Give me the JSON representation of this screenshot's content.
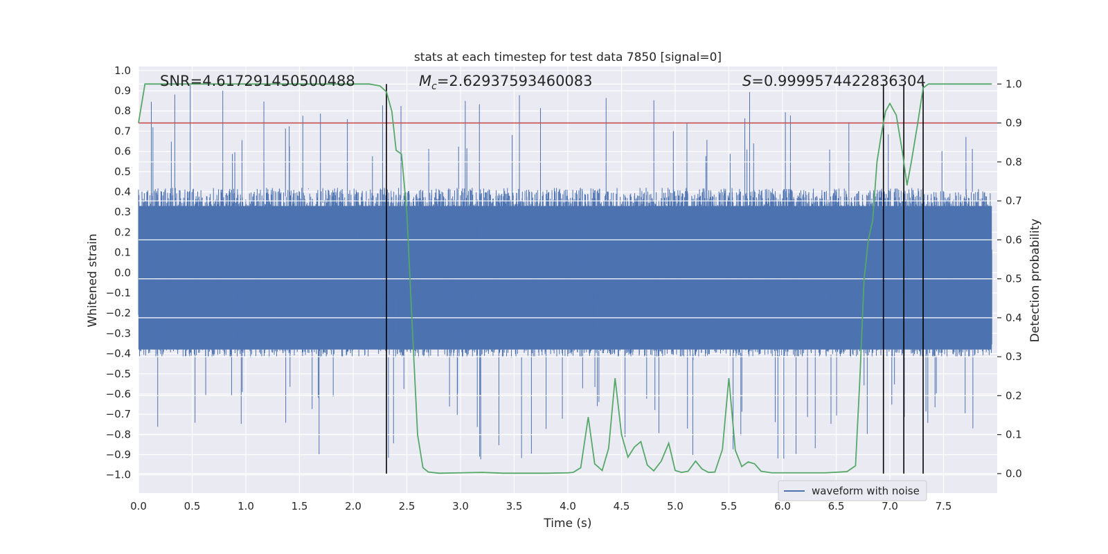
{
  "chart_data": {
    "type": "line",
    "title": "stats at each timestep for test data 7850 [signal=0]",
    "xlabel": "Time (s)",
    "ylabel_left": "Whitened strain",
    "ylabel_right": "Detection probability",
    "xlim": [
      0.0,
      8.0
    ],
    "ylim_left": [
      -1.09,
      1.02
    ],
    "ylim_right": [
      -0.05,
      1.045
    ],
    "x_ticks": [
      "0.0",
      "0.5",
      "1.0",
      "1.5",
      "2.0",
      "2.5",
      "3.0",
      "3.5",
      "4.0",
      "4.5",
      "5.0",
      "5.5",
      "6.0",
      "6.5",
      "7.0",
      "7.5"
    ],
    "x_tick_values": [
      0.0,
      0.5,
      1.0,
      1.5,
      2.0,
      2.5,
      3.0,
      3.5,
      4.0,
      4.5,
      5.0,
      5.5,
      6.0,
      6.5,
      7.0,
      7.5
    ],
    "y_ticks_left": [
      "1.0",
      "0.9",
      "0.8",
      "0.7",
      "0.6",
      "0.5",
      "0.4",
      "0.3",
      "0.2",
      "0.1",
      "0.0",
      "−0.1",
      "−0.2",
      "−0.3",
      "−0.4",
      "−0.5",
      "−0.6",
      "−0.7",
      "−0.8",
      "−0.9",
      "−1.0"
    ],
    "y_tick_values_left": [
      1.0,
      0.9,
      0.8,
      0.7,
      0.6,
      0.5,
      0.4,
      0.3,
      0.2,
      0.1,
      0.0,
      -0.1,
      -0.2,
      -0.3,
      -0.4,
      -0.5,
      -0.6,
      -0.7,
      -0.8,
      -0.9,
      -1.0
    ],
    "y_ticks_right": [
      "1.0",
      "0.9",
      "0.8",
      "0.7",
      "0.6",
      "0.5",
      "0.4",
      "0.3",
      "0.2",
      "0.1",
      "0.0"
    ],
    "y_tick_values_right": [
      1.0,
      0.9,
      0.8,
      0.7,
      0.6,
      0.5,
      0.4,
      0.3,
      0.2,
      0.1,
      0.0
    ],
    "annotations": {
      "snr": "SNR=4.617291450500488",
      "mc_symbol": "M",
      "mc_sub": "c",
      "mc_value": "=2.62937593460083",
      "s_symbol": "S",
      "s_value": "=0.9999574422836304"
    },
    "legend": {
      "label": "waveform with noise",
      "position": "lower-right"
    },
    "threshold": {
      "value": 0.9,
      "axis": "right",
      "color": "#c44e52"
    },
    "vertical_markers": [
      2.31,
      6.94,
      7.13,
      7.31
    ],
    "vertical_marker_range_right": [
      0.0,
      1.0
    ],
    "waveform": {
      "color": "#4c72b0",
      "samples": 3200,
      "seed": 7850,
      "typical_range": [
        -0.42,
        0.45
      ],
      "max_abs": 1.0
    },
    "probability_series": {
      "color": "#55a868",
      "x": [
        0.0,
        0.06,
        0.2,
        0.6,
        1.0,
        1.5,
        2.0,
        2.15,
        2.25,
        2.31,
        2.36,
        2.4,
        2.45,
        2.5,
        2.55,
        2.6,
        2.65,
        2.7,
        2.8,
        3.0,
        3.2,
        3.4,
        3.6,
        3.8,
        4.0,
        4.05,
        4.12,
        4.19,
        4.25,
        4.32,
        4.38,
        4.44,
        4.5,
        4.56,
        4.62,
        4.68,
        4.74,
        4.8,
        4.87,
        4.94,
        5.0,
        5.06,
        5.12,
        5.19,
        5.25,
        5.31,
        5.37,
        5.44,
        5.5,
        5.56,
        5.62,
        5.68,
        5.74,
        5.8,
        5.9,
        6.0,
        6.2,
        6.4,
        6.6,
        6.68,
        6.72,
        6.76,
        6.8,
        6.84,
        6.88,
        6.92,
        6.96,
        7.0,
        7.06,
        7.12,
        7.16,
        7.2,
        7.26,
        7.31,
        7.36,
        7.42,
        7.5,
        7.6,
        7.75,
        7.95
      ],
      "values": [
        0.9,
        1.0,
        1.0,
        1.0,
        1.0,
        1.0,
        1.0,
        1.0,
        0.995,
        0.98,
        0.93,
        0.83,
        0.82,
        0.67,
        0.38,
        0.1,
        0.015,
        0.004,
        0.001,
        0.002,
        0.003,
        0.001,
        0.001,
        0.001,
        0.002,
        0.003,
        0.015,
        0.145,
        0.025,
        0.008,
        0.065,
        0.245,
        0.1,
        0.042,
        0.068,
        0.082,
        0.022,
        0.007,
        0.032,
        0.078,
        0.008,
        0.003,
        0.006,
        0.032,
        0.012,
        0.003,
        0.004,
        0.062,
        0.245,
        0.06,
        0.018,
        0.03,
        0.025,
        0.006,
        0.002,
        0.002,
        0.002,
        0.002,
        0.005,
        0.02,
        0.24,
        0.5,
        0.6,
        0.65,
        0.8,
        0.87,
        0.93,
        0.95,
        0.92,
        0.82,
        0.74,
        0.8,
        0.9,
        0.99,
        1.0,
        1.0,
        1.0,
        1.0,
        1.0,
        1.0
      ]
    }
  }
}
